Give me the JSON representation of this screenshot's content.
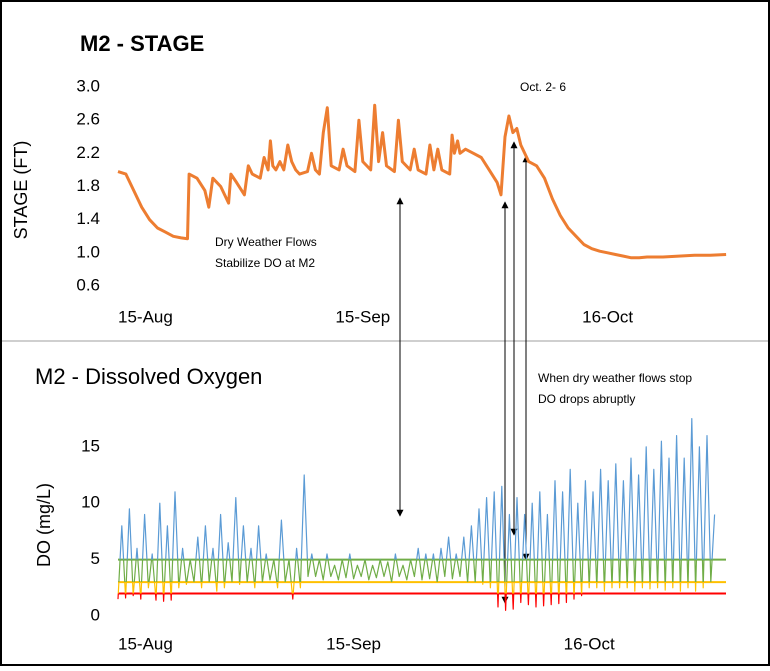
{
  "chart_data": [
    {
      "type": "line",
      "title": "M2 - STAGE",
      "y_label": "STAGE (FT)",
      "annotations": [
        "Oct. 2- 6",
        "Dry Weather Flows",
        "Stabilize DO at M2"
      ],
      "xlim": [
        0,
        78
      ],
      "xticks": [
        {
          "value": 0,
          "label": "15-Aug"
        },
        {
          "value": 31,
          "label": "15-Sep"
        },
        {
          "value": 62,
          "label": "16-Oct"
        }
      ],
      "ylim": [
        0.6,
        3.0
      ],
      "yticks": [
        {
          "value": 3.0,
          "label": "3.0"
        },
        {
          "value": 2.6,
          "label": "2.6"
        },
        {
          "value": 2.2,
          "label": "2.2"
        },
        {
          "value": 1.8,
          "label": "1.8"
        },
        {
          "value": 1.4,
          "label": "1.4"
        },
        {
          "value": 1.0,
          "label": "1.0"
        },
        {
          "value": 0.6,
          "label": "0.6"
        }
      ],
      "series": [
        {
          "name": "Stage",
          "color": "#ed7d31",
          "x": [
            0,
            1,
            2,
            3,
            4,
            5,
            6,
            7,
            8,
            8.8,
            9,
            10,
            11,
            11.5,
            12,
            13,
            14,
            14.3,
            15,
            16,
            16.5,
            17,
            18,
            18.5,
            19,
            19.3,
            19.6,
            20,
            20.5,
            21,
            21.5,
            22,
            22.5,
            23,
            24,
            24.5,
            25,
            25.5,
            26,
            26.5,
            27,
            28,
            28.5,
            29,
            30,
            30.5,
            31,
            32,
            32.5,
            33,
            33.5,
            34,
            35,
            35.5,
            36,
            37,
            37.5,
            38,
            39,
            39.5,
            40,
            40.5,
            41,
            42,
            42.3,
            42.6,
            43,
            43.3,
            44,
            45,
            46,
            47,
            48,
            48.5,
            49,
            49.5,
            50,
            50.5,
            51,
            52,
            53,
            54,
            55,
            56,
            57,
            58,
            59,
            60,
            61,
            62,
            63,
            64,
            65,
            66,
            67,
            69,
            71,
            73,
            75,
            77
          ],
          "values": [
            1.98,
            1.95,
            1.75,
            1.55,
            1.4,
            1.3,
            1.25,
            1.2,
            1.18,
            1.17,
            1.95,
            1.9,
            1.75,
            1.55,
            1.9,
            1.8,
            1.6,
            1.95,
            1.85,
            1.7,
            2.05,
            1.95,
            1.9,
            2.15,
            2.0,
            2.35,
            2.05,
            2.0,
            2.1,
            2.0,
            2.3,
            2.1,
            2.0,
            1.95,
            1.98,
            2.2,
            2.0,
            1.95,
            2.45,
            2.75,
            2.05,
            2.0,
            2.25,
            2.05,
            1.98,
            2.6,
            2.1,
            2.0,
            2.78,
            2.1,
            2.45,
            2.05,
            1.98,
            2.6,
            2.1,
            2.0,
            2.25,
            2.0,
            1.95,
            2.3,
            2.0,
            2.25,
            2.0,
            1.95,
            2.42,
            2.2,
            2.35,
            2.2,
            2.25,
            2.2,
            2.15,
            2.0,
            1.85,
            1.7,
            2.4,
            2.65,
            2.45,
            2.5,
            2.3,
            2.1,
            2.05,
            1.9,
            1.65,
            1.45,
            1.3,
            1.2,
            1.1,
            1.05,
            1.02,
            1.0,
            0.98,
            0.96,
            0.94,
            0.94,
            0.95,
            0.95,
            0.96,
            0.97,
            0.97,
            0.98
          ]
        }
      ]
    },
    {
      "type": "line",
      "title": "M2 - Dissolved Oxygen",
      "y_label": "DO (mg/L)",
      "annotations": [
        "When dry weather flows stop",
        "DO drops abruptly"
      ],
      "xlim": [
        0,
        80
      ],
      "xticks": [
        {
          "value": 0,
          "label": "15-Aug"
        },
        {
          "value": 31,
          "label": "15-Sep"
        },
        {
          "value": 62,
          "label": "16-Oct"
        }
      ],
      "ylim": [
        0,
        18
      ],
      "yticks": [
        0,
        5,
        10,
        15
      ],
      "thresholds": [
        {
          "value": 5,
          "color": "#70ad47"
        },
        {
          "value": 3,
          "color": "#ffc000"
        },
        {
          "value": 2,
          "color": "#ff0000"
        }
      ],
      "series": [
        {
          "name": "DO",
          "color": "#5b9bd5",
          "x": [
            0,
            0.5,
            1,
            1.5,
            2,
            2.5,
            3,
            3.5,
            4,
            4.5,
            5,
            5.5,
            6,
            6.5,
            7,
            7.5,
            8,
            8.5,
            9,
            9.5,
            10,
            10.5,
            11,
            11.5,
            12,
            12.5,
            13,
            13.5,
            14,
            14.5,
            15,
            15.5,
            16,
            16.5,
            17,
            17.5,
            18,
            18.5,
            19,
            19.5,
            20,
            20.5,
            21,
            21.5,
            22,
            22.5,
            23,
            23.5,
            24,
            24.5,
            25,
            25.5,
            26,
            26.5,
            27,
            27.5,
            28,
            28.5,
            29,
            29.5,
            30,
            30.5,
            31,
            31.5,
            32,
            32.5,
            33,
            33.5,
            34,
            34.5,
            35,
            35.5,
            36,
            36.5,
            37,
            37.5,
            38,
            38.5,
            39,
            39.5,
            40,
            40.5,
            41,
            41.5,
            42,
            42.5,
            43,
            43.5,
            44,
            44.5,
            45,
            45.5,
            46,
            46.5,
            47,
            47.5,
            48,
            48.5,
            49,
            49.5,
            50,
            50.5,
            51,
            51.5,
            52,
            52.5,
            53,
            53.5,
            54,
            54.5,
            55,
            55.5,
            56,
            56.5,
            57,
            57.5,
            58,
            58.5,
            59,
            59.5,
            60,
            60.5,
            61,
            61.5,
            62,
            62.5,
            63,
            63.5,
            64,
            64.5,
            65,
            65.5,
            66,
            66.5,
            67,
            67.5,
            68,
            68.5,
            69,
            69.5,
            70,
            70.5,
            71,
            71.5,
            72,
            72.5,
            73,
            73.5,
            74,
            74.5,
            75,
            75.5,
            76,
            76.5,
            77,
            77.5,
            78,
            78.5
          ],
          "values": [
            1.5,
            8,
            1.6,
            9.5,
            1.8,
            6,
            1.5,
            9,
            2.5,
            5.5,
            1.4,
            10,
            1.3,
            8,
            1.4,
            11,
            2.5,
            6,
            2.8,
            5,
            3,
            7,
            2.5,
            8,
            3,
            6,
            2.2,
            9,
            2.5,
            6.5,
            3,
            10.5,
            2.8,
            8,
            3,
            6,
            2.5,
            8,
            3,
            5.5,
            3.2,
            5,
            2.5,
            8.5,
            3,
            5,
            1.5,
            6,
            2.5,
            12.5,
            3.5,
            5.5,
            3.5,
            5,
            3.2,
            5.5,
            3.5,
            4.5,
            3.2,
            5,
            3.4,
            5.5,
            3.3,
            4.5,
            3.5,
            5,
            3.2,
            4.5,
            3.4,
            5,
            3.5,
            4.8,
            3,
            5.5,
            3.5,
            4.5,
            3.2,
            5,
            3.5,
            6,
            3.2,
            5.5,
            3.3,
            5.5,
            3,
            6,
            3.5,
            7,
            3.3,
            5.5,
            3.5,
            7,
            3,
            8,
            3,
            9.5,
            2.8,
            10.5,
            2.5,
            11,
            0.8,
            11.5,
            0.5,
            9,
            0.6,
            10.5,
            1.2,
            9,
            1,
            10,
            0.8,
            11,
            0.9,
            9,
            1,
            12,
            1.1,
            11,
            1.2,
            13,
            1.5,
            10,
            1.8,
            12,
            2.5,
            11,
            2.5,
            13,
            2.2,
            12,
            2.5,
            13.5,
            2.5,
            12,
            2.5,
            14,
            2.2,
            12.5,
            2.5,
            15,
            2.4,
            13,
            2.5,
            15.5,
            2.3,
            14,
            2.5,
            16,
            2.2,
            14,
            2.5,
            17.5,
            2.2,
            15,
            2.5,
            16,
            3,
            9
          ]
        }
      ]
    }
  ]
}
